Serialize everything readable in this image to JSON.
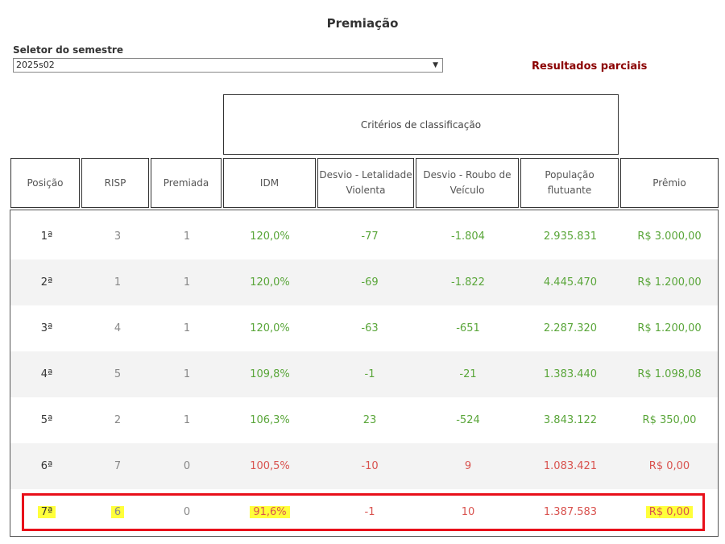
{
  "title": "Premiação",
  "selector": {
    "label": "Seletor do semestre",
    "value": "2025s02"
  },
  "partial_results": "Resultados parciais",
  "criteria_header": "Critérios de classificação",
  "columns": [
    "Posição",
    "RISP",
    "Premiada",
    "IDM",
    "Desvio - Letalidade Violenta",
    "Desvio - Roubo de Veículo",
    "População flutuante",
    "Prêmio"
  ],
  "colors": {
    "positive": "#5aa63a",
    "negative": "#d9534f",
    "title_red": "#8b0000",
    "highlight": "#ffff3a",
    "highlight_border": "#e8101a"
  },
  "rows": [
    {
      "posicao": "1ª",
      "risp": "3",
      "premiada": "1",
      "idm": "120,0%",
      "letalidade": "-77",
      "roubo": "-1.804",
      "populacao": "2.935.831",
      "premio": "R$ 3.000,00",
      "status": "positive"
    },
    {
      "posicao": "2ª",
      "risp": "1",
      "premiada": "1",
      "idm": "120,0%",
      "letalidade": "-69",
      "roubo": "-1.822",
      "populacao": "4.445.470",
      "premio": "R$ 1.200,00",
      "status": "positive"
    },
    {
      "posicao": "3ª",
      "risp": "4",
      "premiada": "1",
      "idm": "120,0%",
      "letalidade": "-63",
      "roubo": "-651",
      "populacao": "2.287.320",
      "premio": "R$ 1.200,00",
      "status": "positive"
    },
    {
      "posicao": "4ª",
      "risp": "5",
      "premiada": "1",
      "idm": "109,8%",
      "letalidade": "-1",
      "roubo": "-21",
      "populacao": "1.383.440",
      "premio": "R$ 1.098,08",
      "status": "positive"
    },
    {
      "posicao": "5ª",
      "risp": "2",
      "premiada": "1",
      "idm": "106,3%",
      "letalidade": "23",
      "roubo": "-524",
      "populacao": "3.843.122",
      "premio": "R$ 350,00",
      "status": "positive"
    },
    {
      "posicao": "6ª",
      "risp": "7",
      "premiada": "0",
      "idm": "100,5%",
      "letalidade": "-10",
      "roubo": "9",
      "populacao": "1.083.421",
      "premio": "R$ 0,00",
      "status": "negative"
    },
    {
      "posicao": "7ª",
      "risp": "6",
      "premiada": "0",
      "idm": "91,6%",
      "letalidade": "-1",
      "roubo": "10",
      "populacao": "1.387.583",
      "premio": "R$ 0,00",
      "status": "negative",
      "highlighted": true
    }
  ]
}
